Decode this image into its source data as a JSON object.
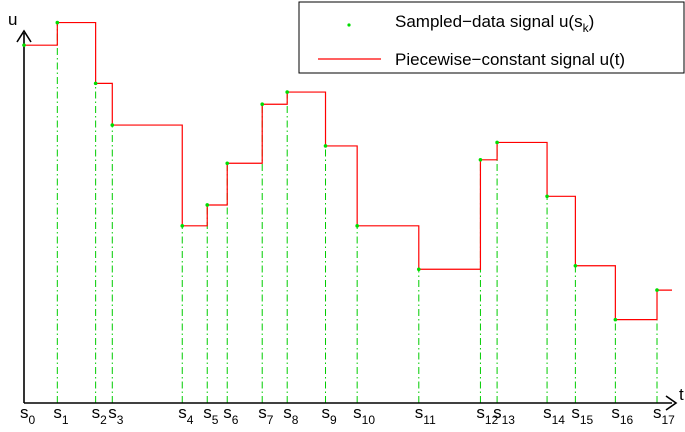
{
  "chart_data": {
    "type": "line",
    "title": "",
    "xlabel": "t",
    "ylabel": "u",
    "grid": false,
    "legend_position": "top-right",
    "x_tick_labels": [
      {
        "base": "s",
        "sub": "0"
      },
      {
        "base": "s",
        "sub": "1"
      },
      {
        "base": "s",
        "sub": "2"
      },
      {
        "base": "s",
        "sub": "3"
      },
      {
        "base": "s",
        "sub": "4"
      },
      {
        "base": "s",
        "sub": "5"
      },
      {
        "base": "s",
        "sub": "6"
      },
      {
        "base": "s",
        "sub": "7"
      },
      {
        "base": "s",
        "sub": "8"
      },
      {
        "base": "s",
        "sub": "9"
      },
      {
        "base": "s",
        "sub": "10"
      },
      {
        "base": "s",
        "sub": "11"
      },
      {
        "base": "s",
        "sub": "12"
      },
      {
        "base": "s",
        "sub": "13"
      },
      {
        "base": "s",
        "sub": "14"
      },
      {
        "base": "s",
        "sub": "15"
      },
      {
        "base": "s",
        "sub": "16"
      },
      {
        "base": "s",
        "sub": "17"
      }
    ],
    "sample_times": [
      0,
      2.0,
      4.3,
      5.3,
      9.5,
      11.0,
      12.2,
      14.3,
      15.8,
      18.1,
      20.0,
      23.7,
      27.4,
      28.4,
      31.4,
      33.1,
      35.5,
      38.0
    ],
    "sample_values": [
      10.3,
      10.95,
      9.2,
      8.0,
      5.1,
      5.7,
      6.9,
      8.6,
      8.95,
      7.4,
      5.1,
      3.85,
      7.0,
      7.5,
      5.95,
      3.95,
      2.4,
      3.25
    ],
    "x_end": 38.9,
    "xlim": [
      0,
      38.9
    ],
    "ylim": [
      0,
      11.6
    ],
    "series": [
      {
        "name": "Sampled−data signal u(s",
        "name_sub": "k",
        "name_suffix": ")",
        "kind": "points",
        "color": "#00dd00"
      },
      {
        "name": "Piecewise−constant signal u(t)",
        "kind": "step",
        "color": "#ff0000"
      }
    ],
    "dropline_color": "#00cc00"
  }
}
